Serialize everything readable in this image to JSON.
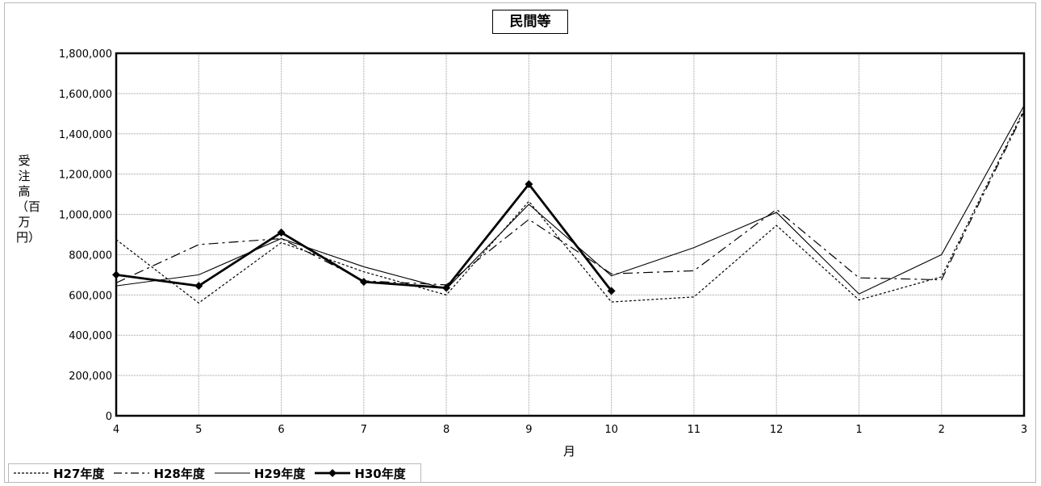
{
  "chart_data": {
    "type": "line",
    "title": "民間等",
    "xlabel": "月",
    "ylabel": "受注高（百万円）",
    "categories": [
      "4",
      "5",
      "6",
      "7",
      "8",
      "9",
      "10",
      "11",
      "12",
      "1",
      "2",
      "3"
    ],
    "ylim": [
      0,
      1800000
    ],
    "yticks": [
      0,
      200000,
      400000,
      600000,
      800000,
      1000000,
      1200000,
      1400000,
      1600000,
      1800000
    ],
    "ytick_labels": [
      "0",
      "200,000",
      "400,000",
      "600,000",
      "800,000",
      "1,000,000",
      "1,200,000",
      "1,400,000",
      "1,600,000",
      "1,800,000"
    ],
    "grid": true,
    "legend_position": "bottom-left",
    "series": [
      {
        "name": "H27年度",
        "style": "dotted",
        "color": "#000000",
        "values": [
          875000,
          560000,
          860000,
          715000,
          600000,
          1065000,
          565000,
          590000,
          945000,
          575000,
          690000,
          1520000
        ]
      },
      {
        "name": "H28年度",
        "style": "dashdot",
        "color": "#000000",
        "values": [
          660000,
          850000,
          880000,
          670000,
          650000,
          975000,
          705000,
          720000,
          1025000,
          685000,
          675000,
          1510000
        ]
      },
      {
        "name": "H29年度",
        "style": "solid",
        "color": "#000000",
        "values": [
          645000,
          700000,
          880000,
          740000,
          630000,
          1050000,
          695000,
          835000,
          1010000,
          605000,
          800000,
          1540000
        ]
      },
      {
        "name": "H30年度",
        "style": "bold-marker",
        "color": "#000000",
        "values": [
          700000,
          645000,
          910000,
          665000,
          635000,
          1150000,
          620000,
          null,
          null,
          null,
          null,
          null
        ]
      }
    ]
  }
}
